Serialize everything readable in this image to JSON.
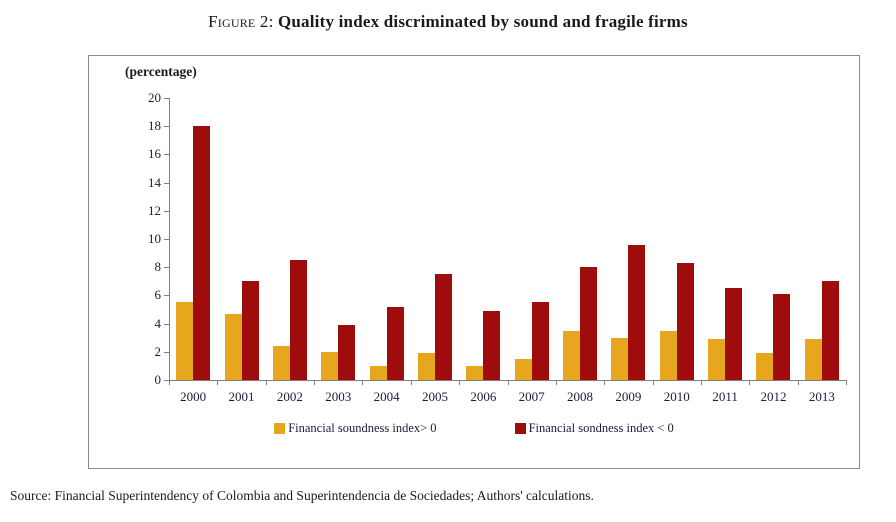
{
  "title": {
    "label": "Figure 2:",
    "text": "Quality index discriminated by sound and fragile firms"
  },
  "source": "Source: Financial Superintendency of Colombia and Superintendencia de Sociedades; Authors' calculations.",
  "chart_data": {
    "type": "bar",
    "title": "Figure 2: Quality index discriminated by sound and fragile firms",
    "ylabel": "(percentage)",
    "xlabel": "",
    "categories": [
      "2000",
      "2001",
      "2002",
      "2003",
      "2004",
      "2005",
      "2006",
      "2007",
      "2008",
      "2009",
      "2010",
      "2011",
      "2012",
      "2013"
    ],
    "series": [
      {
        "name": "Financial soundness index> 0",
        "color": "#E6A71E",
        "values": [
          5.5,
          4.7,
          2.4,
          2.0,
          1.0,
          1.9,
          1.0,
          1.5,
          3.5,
          3.0,
          3.5,
          2.9,
          1.9,
          2.9
        ]
      },
      {
        "name": "Financial sondness index < 0",
        "color": "#9E0C0C",
        "values": [
          18.0,
          7.0,
          8.5,
          3.9,
          5.2,
          7.5,
          4.9,
          5.5,
          8.0,
          9.6,
          8.3,
          6.5,
          6.1,
          7.0
        ]
      }
    ],
    "ylim": [
      0,
      20
    ],
    "ytick_step": 2,
    "grid": false,
    "legend_position": "bottom"
  },
  "colors": {
    "axis": "#808080",
    "box_border": "#8a8a8a",
    "tick_text": "#1c1c3c"
  }
}
